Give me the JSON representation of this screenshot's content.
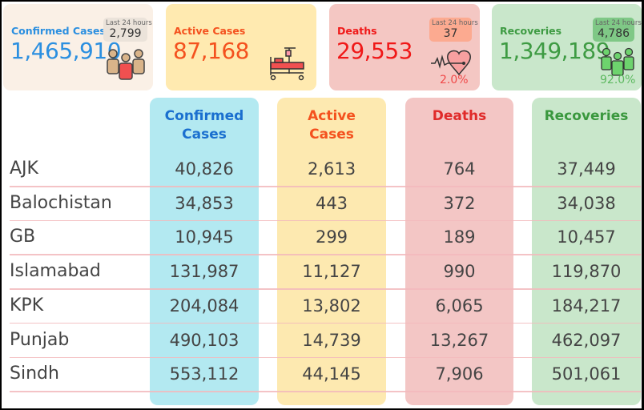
{
  "cards": [
    {
      "title": "Confirmed Cases",
      "value": "1,465,910",
      "badge_label": "Last 24 hours",
      "badge_value": "2,799",
      "icon": "people-icon",
      "color": "#2b8fe0",
      "bg": "#faf0e6"
    },
    {
      "title": "Active Cases",
      "value": "87,168",
      "icon": "hospital-bed-icon",
      "color": "#f4511e",
      "bg": "#ffeab0"
    },
    {
      "title": "Deaths",
      "value": "29,553",
      "badge_label": "Last 24 hours",
      "badge_value": "37",
      "percent": "2.0%",
      "icon": "heartbeat-icon",
      "color": "#f01818",
      "bg": "#f4c7c3"
    },
    {
      "title": "Recoveries",
      "value": "1,349,189",
      "badge_label": "Last 24 hours",
      "badge_value": "4,786",
      "percent": "92.0%",
      "icon": "recovered-people-icon",
      "color": "#3e9b43",
      "bg": "#c9e7cb"
    }
  ],
  "table": {
    "headers": [
      [
        "Confirmed",
        "Cases"
      ],
      [
        "Active",
        "Cases"
      ],
      [
        "Deaths",
        ""
      ],
      [
        "Recoveries",
        ""
      ]
    ],
    "rows": [
      {
        "region": "AJK",
        "values": [
          "40,826",
          "2,613",
          "764",
          "37,449"
        ]
      },
      {
        "region": "Balochistan",
        "values": [
          "34,853",
          "443",
          "372",
          "34,038"
        ]
      },
      {
        "region": "GB",
        "values": [
          "10,945",
          "299",
          "189",
          "10,457"
        ]
      },
      {
        "region": "Islamabad",
        "values": [
          "131,987",
          "11,127",
          "990",
          "119,870"
        ]
      },
      {
        "region": "KPK",
        "values": [
          "204,084",
          "13,802",
          "6,065",
          "184,217"
        ]
      },
      {
        "region": "Punjab",
        "values": [
          "490,103",
          "14,739",
          "13,267",
          "462,097"
        ]
      },
      {
        "region": "Sindh",
        "values": [
          "553,112",
          "44,145",
          "7,906",
          "501,061"
        ]
      }
    ]
  }
}
